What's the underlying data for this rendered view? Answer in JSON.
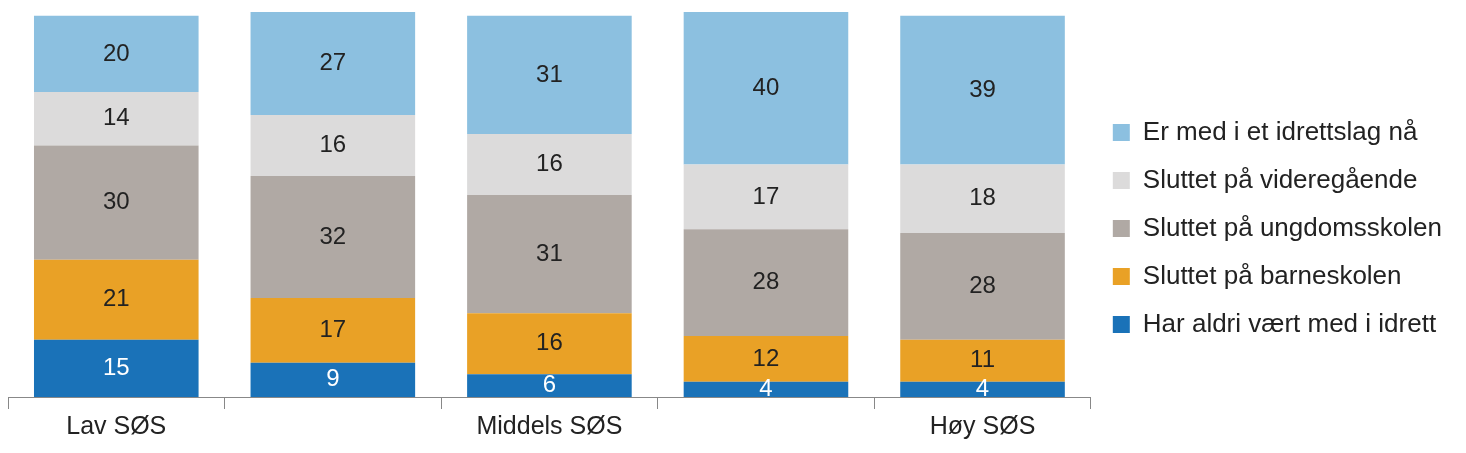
{
  "chart_data": {
    "type": "bar",
    "stacked": true,
    "data_labels": true,
    "legend": "right",
    "categories": [
      "Lav SØS",
      null,
      "Middels SØS",
      null,
      "Høy SØS"
    ],
    "series": [
      {
        "name": "Har aldri vært med i idrett",
        "color": "#1a72b8",
        "values": [
          15,
          9,
          6,
          4,
          4
        ]
      },
      {
        "name": "Sluttet på barneskolen",
        "color": "#e9a126",
        "values": [
          21,
          17,
          16,
          12,
          11
        ]
      },
      {
        "name": "Sluttet på ungdomsskolen",
        "color": "#b0a9a4",
        "values": [
          30,
          32,
          31,
          28,
          28
        ]
      },
      {
        "name": "Sluttet på videregående",
        "color": "#dcdbdb",
        "values": [
          14,
          16,
          16,
          17,
          18
        ]
      },
      {
        "name": "Er med i et idrettslag nå",
        "color": "#8cc0e0",
        "values": [
          20,
          27,
          31,
          40,
          39
        ]
      }
    ]
  }
}
